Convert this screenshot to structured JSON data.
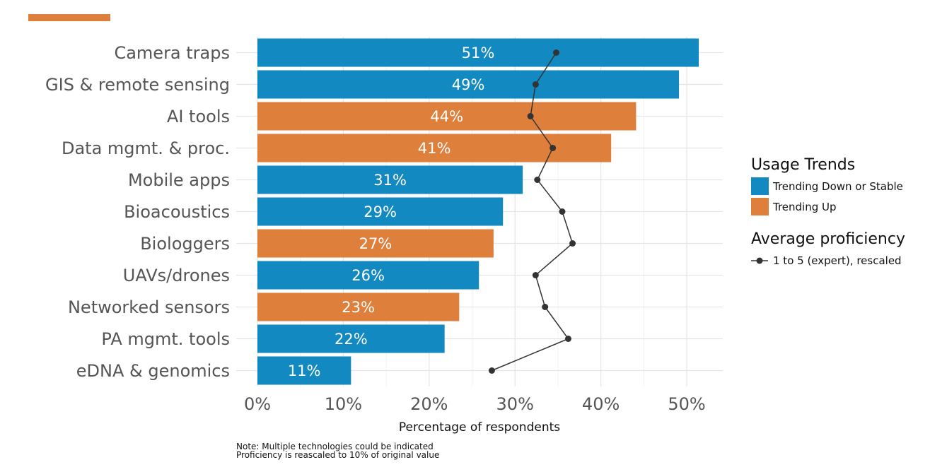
{
  "accent_color": "#DF7F3C",
  "chart_data": {
    "type": "bar",
    "orientation": "horizontal",
    "categories": [
      "Camera traps",
      "GIS & remote sensing",
      "AI tools",
      "Data mgmt. & proc.",
      "Mobile apps",
      "Bioacoustics",
      "Biologgers",
      "UAVs/drones",
      "Networked sensors",
      "PA mgmt. tools",
      "eDNA & genomics"
    ],
    "values": [
      51.4,
      49.1,
      44.1,
      41.2,
      30.9,
      28.6,
      27.5,
      25.8,
      23.5,
      21.8,
      10.9
    ],
    "value_labels": [
      "51%",
      "49%",
      "44%",
      "41%",
      "31%",
      "29%",
      "27%",
      "26%",
      "23%",
      "22%",
      "11%"
    ],
    "trend": [
      "down_or_stable",
      "down_or_stable",
      "up",
      "up",
      "down_or_stable",
      "down_or_stable",
      "up",
      "down_or_stable",
      "up",
      "down_or_stable",
      "down_or_stable"
    ],
    "proficiency": [
      34.8,
      32.4,
      31.8,
      34.4,
      32.6,
      35.5,
      36.7,
      32.4,
      33.5,
      36.2,
      27.3
    ],
    "xlabel": "Percentage of respondents",
    "ylabel": "",
    "xlim": [
      0,
      54.2
    ],
    "x_ticks": [
      0,
      10,
      20,
      30,
      40,
      50
    ],
    "x_tick_labels": [
      "0%",
      "10%",
      "20%",
      "30%",
      "40%",
      "50%"
    ],
    "grid": true,
    "colors": {
      "down_or_stable": "#1289C0",
      "up": "#DF7F3C",
      "line": "#333333",
      "grid": "#E5E5E5"
    },
    "legend": {
      "placement": "right",
      "usage_title": "Usage Trends",
      "usage_items": [
        {
          "key": "down_or_stable",
          "label": "Trending Down or Stable"
        },
        {
          "key": "up",
          "label": "Trending Up"
        }
      ],
      "proficiency_title": "Average proficiency",
      "proficiency_label": "1 to 5 (expert), rescaled"
    },
    "notes": [
      "Note: Multiple technologies could be indicated",
      "Proficiency is reascaled to 10% of original value"
    ]
  }
}
